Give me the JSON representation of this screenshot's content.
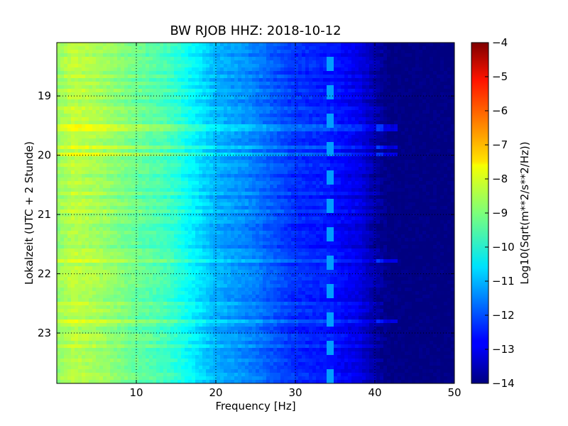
{
  "chart_data": {
    "type": "heatmap",
    "title": "BW RJOB HHZ: 2018-10-12",
    "xlabel": "Frequency [Hz]",
    "ylabel": "Lokalzeit (UTC + 2 Stunde)",
    "xlim": [
      0,
      50
    ],
    "ylim": [
      18.1,
      23.85
    ],
    "x_ticks": [
      10,
      20,
      30,
      40,
      50
    ],
    "y_ticks": [
      19,
      20,
      21,
      22,
      23
    ],
    "grid": true,
    "colormap": "jet",
    "colorbar": {
      "label": "Log10(Sqrt(m**2/s**2/Hz))",
      "range": [
        -14,
        -4
      ],
      "ticks": [
        -4,
        -5,
        -6,
        -7,
        -8,
        -9,
        -10,
        -11,
        -12,
        -13,
        -14
      ]
    },
    "spectrum_profile": {
      "frequency_hz": [
        0,
        2,
        5,
        10,
        14,
        17,
        20,
        24,
        30,
        34,
        38,
        40,
        42,
        50
      ],
      "log10_amplitude": [
        -8.8,
        -8.4,
        -8.6,
        -9.2,
        -9.6,
        -10.3,
        -11.0,
        -11.4,
        -12.3,
        -12.5,
        -13.0,
        -13.6,
        -14.0,
        -14.0
      ]
    },
    "features": [
      {
        "label": "narrowband line",
        "frequency_hz": 34.3,
        "log10_amplitude": -11.2
      }
    ]
  }
}
